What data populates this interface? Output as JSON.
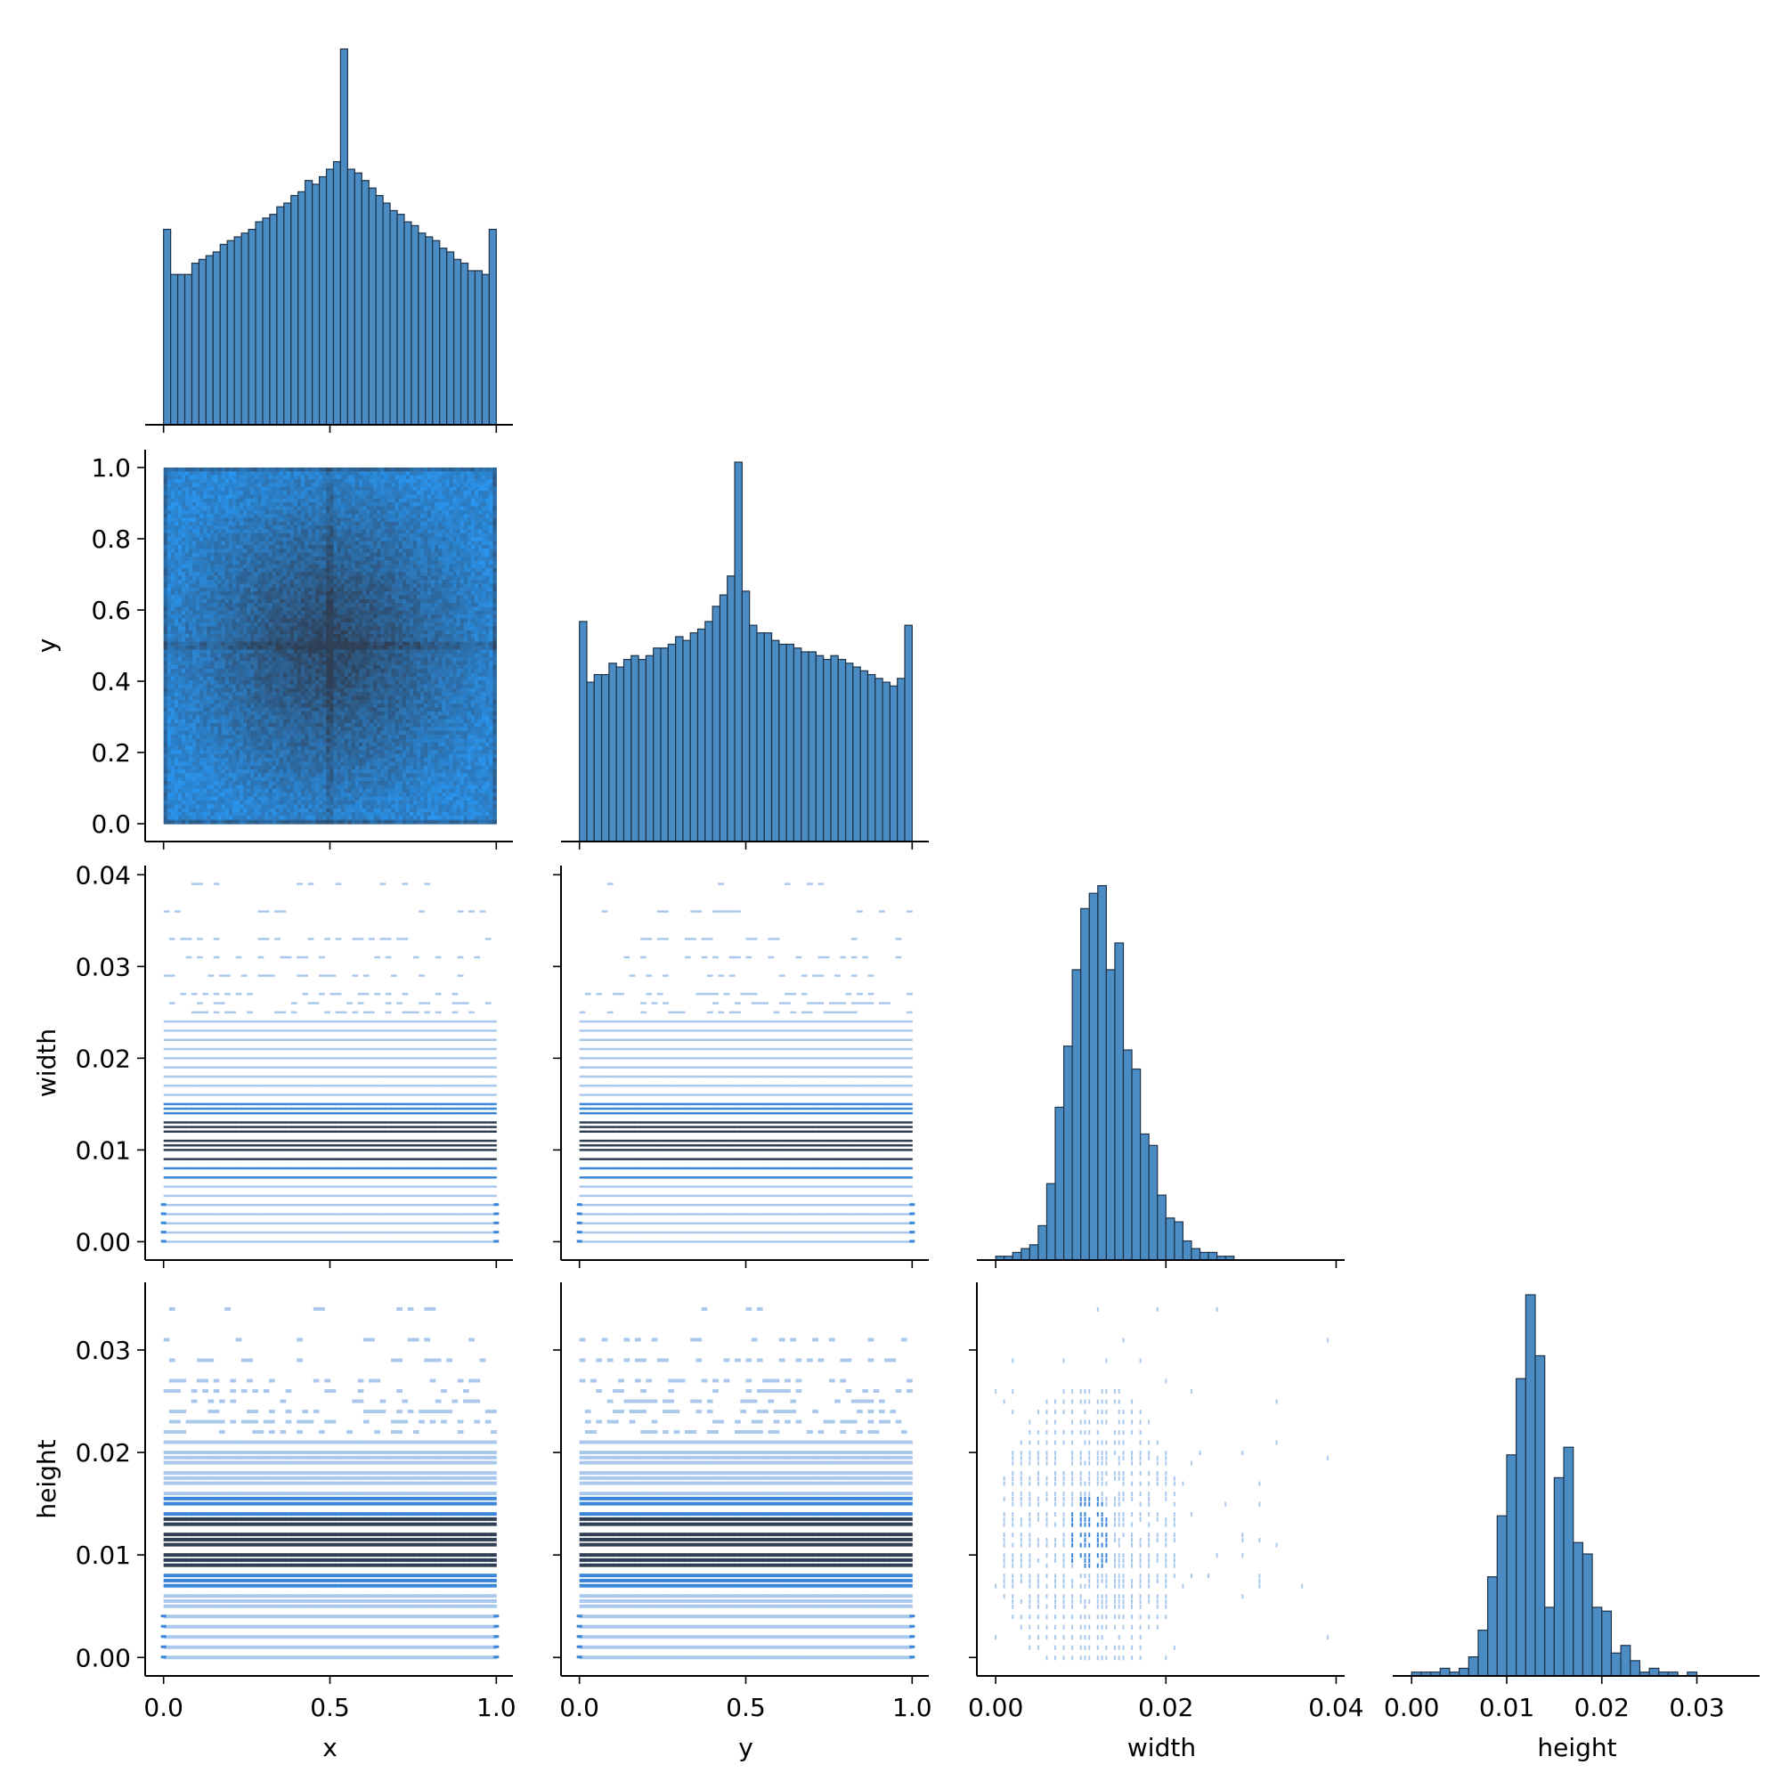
{
  "chart_data": {
    "type": "pairplot-corner",
    "variables": [
      "x",
      "y",
      "width",
      "height"
    ],
    "axis_labels": {
      "x": "x",
      "y": "y",
      "width": "width",
      "height": "height"
    },
    "colors": {
      "bar_fill": "#4c8cc4",
      "bar_edge": "#1d3247",
      "hist2d_light": "#a9c8ec",
      "hist2d_mid": "#3b86d8",
      "hist2d_dark": "#2f3f55",
      "hist2d_bright": "#2a96f0"
    },
    "ticks": {
      "x": {
        "range": [
          -0.05,
          1.05
        ],
        "ticks": [
          0.0,
          0.5,
          1.0
        ],
        "labels": [
          "0.0",
          "0.5",
          "1.0"
        ]
      },
      "y": {
        "range": [
          -0.05,
          1.05
        ],
        "ticks": [
          0.0,
          0.2,
          0.4,
          0.6,
          0.8,
          1.0
        ],
        "labels": [
          "0.0",
          "0.2",
          "0.4",
          "0.6",
          "0.8",
          "1.0"
        ]
      },
      "y_bottom": {
        "ticks": [
          0.0,
          0.5,
          1.0
        ],
        "labels": [
          "0.0",
          "0.5",
          "1.0"
        ]
      },
      "width": {
        "range": [
          -0.002,
          0.041
        ],
        "ticks": [
          0.0,
          0.01,
          0.02,
          0.03,
          0.04
        ],
        "labels": [
          "0.00",
          "0.01",
          "0.02",
          "0.03",
          "0.04"
        ],
        "bottom_labels": [
          "0.00",
          "0.02",
          "0.04"
        ],
        "bottom_ticks": [
          0.0,
          0.02,
          0.04
        ]
      },
      "height": {
        "range": [
          -0.0018,
          0.0366
        ],
        "ticks": [
          0.0,
          0.01,
          0.02,
          0.03
        ],
        "labels": [
          "0.00",
          "0.01",
          "0.02",
          "0.03"
        ]
      }
    },
    "diagonal_histograms": {
      "x": {
        "bin_range": [
          0,
          1
        ],
        "counts": [
          0.52,
          0.4,
          0.4,
          0.4,
          0.43,
          0.44,
          0.45,
          0.46,
          0.48,
          0.49,
          0.5,
          0.51,
          0.52,
          0.54,
          0.55,
          0.56,
          0.58,
          0.59,
          0.61,
          0.62,
          0.65,
          0.64,
          0.66,
          0.68,
          0.7,
          1.0,
          0.68,
          0.67,
          0.65,
          0.63,
          0.61,
          0.59,
          0.57,
          0.56,
          0.54,
          0.53,
          0.51,
          0.5,
          0.49,
          0.47,
          0.46,
          0.44,
          0.43,
          0.41,
          0.41,
          0.4,
          0.52
        ]
      },
      "y": {
        "bin_range": [
          0,
          1
        ],
        "counts": [
          0.58,
          0.42,
          0.44,
          0.44,
          0.47,
          0.46,
          0.48,
          0.49,
          0.48,
          0.49,
          0.51,
          0.51,
          0.52,
          0.54,
          0.53,
          0.55,
          0.56,
          0.58,
          0.62,
          0.65,
          0.7,
          1.0,
          0.66,
          0.57,
          0.55,
          0.55,
          0.53,
          0.52,
          0.52,
          0.51,
          0.5,
          0.5,
          0.49,
          0.48,
          0.49,
          0.48,
          0.47,
          0.46,
          0.45,
          0.44,
          0.43,
          0.42,
          0.41,
          0.43,
          0.57
        ]
      },
      "width": {
        "bin_range": [
          0,
          0.028
        ],
        "counts": [
          0.01,
          0.01,
          0.02,
          0.03,
          0.04,
          0.09,
          0.2,
          0.4,
          0.56,
          0.76,
          0.92,
          0.96,
          0.98,
          0.76,
          0.83,
          0.55,
          0.5,
          0.33,
          0.3,
          0.17,
          0.11,
          0.1,
          0.05,
          0.03,
          0.02,
          0.02,
          0.01,
          0.01
        ]
      },
      "height": {
        "bin_range": [
          0,
          0.03
        ],
        "counts": [
          0.01,
          0.01,
          0.01,
          0.02,
          0.01,
          0.02,
          0.05,
          0.12,
          0.26,
          0.42,
          0.58,
          0.78,
          1.0,
          0.84,
          0.18,
          0.52,
          0.6,
          0.35,
          0.32,
          0.18,
          0.17,
          0.06,
          0.08,
          0.04,
          0.01,
          0.02,
          0.01,
          0.01,
          0.0,
          0.01
        ]
      }
    },
    "bivariate_panels": [
      {
        "x": "x",
        "y": "y",
        "kind": "hist2d-dense"
      },
      {
        "x": "x",
        "y": "width",
        "kind": "hist2d-banded"
      },
      {
        "x": "y",
        "y": "width",
        "kind": "hist2d-banded"
      },
      {
        "x": "x",
        "y": "height",
        "kind": "hist2d-banded"
      },
      {
        "x": "y",
        "y": "height",
        "kind": "hist2d-banded"
      },
      {
        "x": "width",
        "y": "height",
        "kind": "hist2d-sparse"
      }
    ],
    "band_levels": {
      "width": [
        0.0,
        0.001,
        0.002,
        0.003,
        0.004,
        0.005,
        0.006,
        0.007,
        0.008,
        0.009,
        0.01,
        0.0105,
        0.011,
        0.012,
        0.0125,
        0.013,
        0.014,
        0.0145,
        0.015,
        0.016,
        0.017,
        0.018,
        0.019,
        0.02,
        0.021,
        0.022,
        0.023,
        0.024,
        0.025,
        0.026,
        0.027,
        0.029,
        0.031,
        0.033,
        0.036,
        0.039
      ],
      "height": [
        0.0,
        0.001,
        0.002,
        0.003,
        0.004,
        0.005,
        0.0055,
        0.006,
        0.007,
        0.0075,
        0.008,
        0.009,
        0.0095,
        0.01,
        0.011,
        0.0115,
        0.012,
        0.013,
        0.0135,
        0.014,
        0.015,
        0.0155,
        0.016,
        0.017,
        0.0175,
        0.018,
        0.019,
        0.0195,
        0.02,
        0.021,
        0.022,
        0.023,
        0.024,
        0.025,
        0.026,
        0.027,
        0.029,
        0.031,
        0.034
      ]
    }
  }
}
